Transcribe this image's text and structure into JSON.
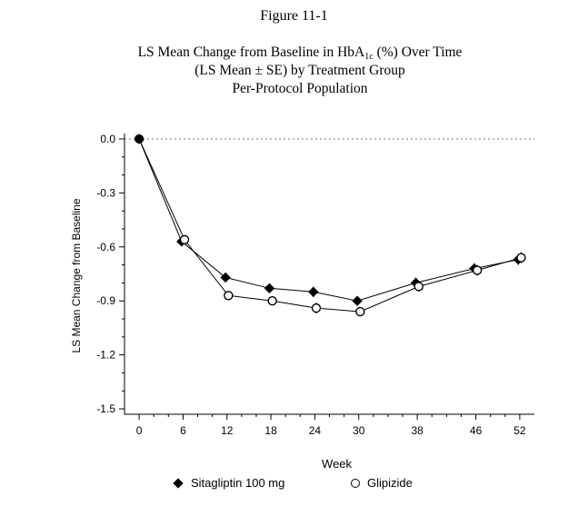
{
  "figure_label": "Figure 11-1",
  "title": {
    "line1_pre": "LS Mean Change from Baseline in HbA",
    "line1_sub": "1c",
    "line1_post": " (%) Over Time",
    "line2": "(LS Mean ± SE) by Treatment Group",
    "line3": "Per-Protocol Population"
  },
  "chart_data": {
    "type": "line",
    "xlabel": "Week",
    "ylabel": "LS Mean Change from Baseline",
    "x_ticks": [
      0,
      6,
      12,
      18,
      24,
      30,
      38,
      46,
      52
    ],
    "y_ticks": [
      0.0,
      -0.3,
      -0.6,
      -0.9,
      -1.2,
      -1.5
    ],
    "y_tick_labels": [
      "0.0",
      "-0.3",
      "-0.6",
      "-0.9",
      "-1.2",
      "-1.5"
    ],
    "xlim": [
      -2,
      54
    ],
    "ylim": [
      -1.53,
      0.03
    ],
    "reference_line": {
      "y": 0.0,
      "style": "dotted"
    },
    "legend_position": "bottom",
    "series": [
      {
        "name": "Sitagliptin 100 mg",
        "marker": "diamond-filled",
        "x": [
          0,
          6,
          12,
          18,
          24,
          30,
          38,
          46,
          52
        ],
        "y": [
          0.0,
          -0.57,
          -0.77,
          -0.83,
          -0.85,
          -0.9,
          -0.8,
          -0.72,
          -0.67
        ],
        "se": [
          0.0,
          0.02,
          0.02,
          0.02,
          0.03,
          0.02,
          0.03,
          0.03,
          0.03
        ]
      },
      {
        "name": "Glipizide",
        "marker": "circle-open",
        "x": [
          0,
          6,
          12,
          18,
          24,
          30,
          38,
          46,
          52
        ],
        "y": [
          0.0,
          -0.56,
          -0.87,
          -0.9,
          -0.94,
          -0.96,
          -0.82,
          -0.73,
          -0.66
        ],
        "se": [
          0.0,
          0.02,
          0.02,
          0.02,
          0.03,
          0.02,
          0.03,
          0.03,
          0.03
        ]
      }
    ]
  }
}
